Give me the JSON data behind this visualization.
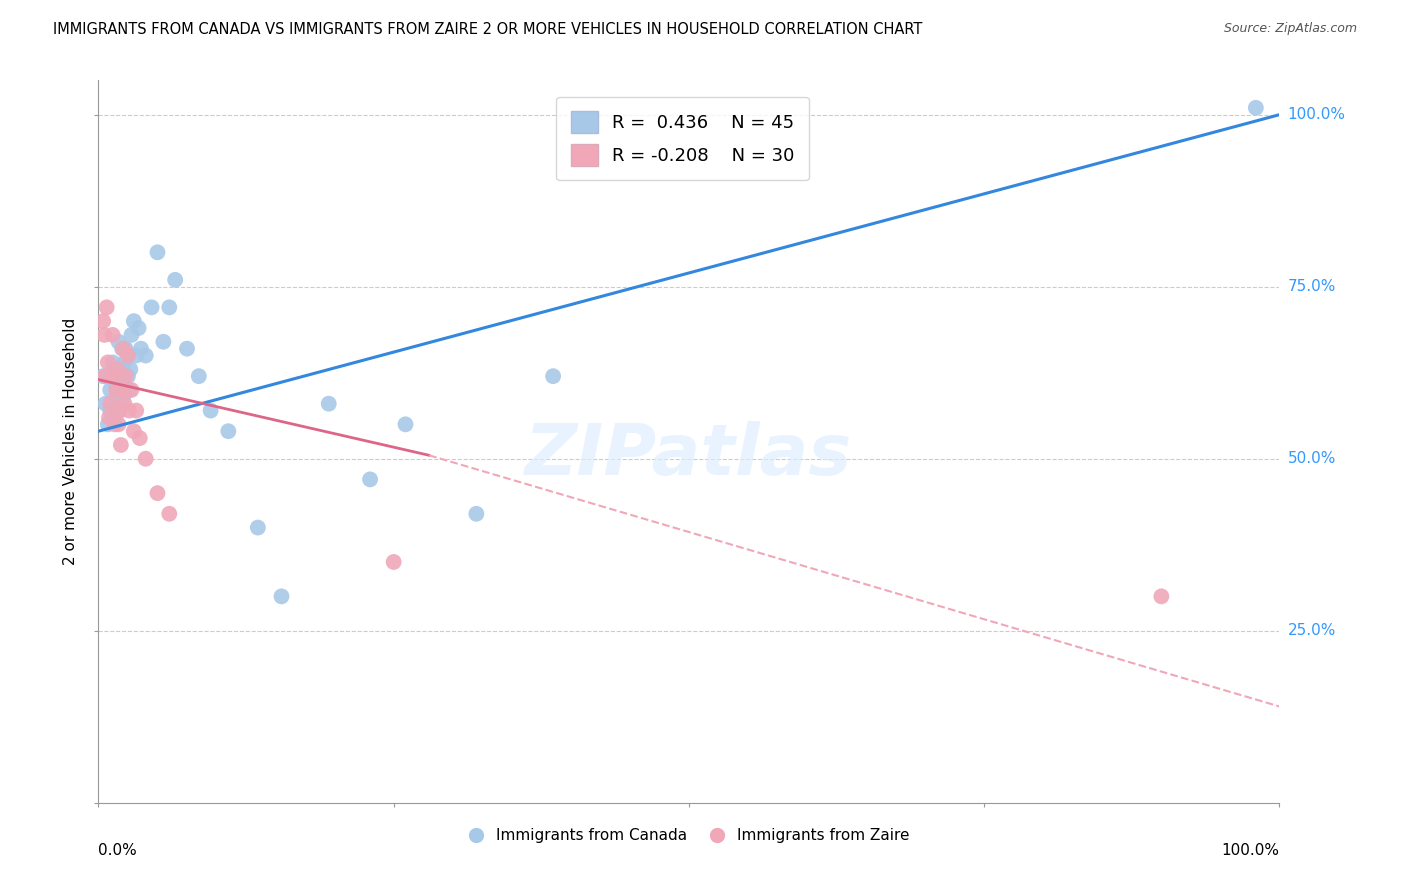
{
  "title": "IMMIGRANTS FROM CANADA VS IMMIGRANTS FROM ZAIRE 2 OR MORE VEHICLES IN HOUSEHOLD CORRELATION CHART",
  "source": "Source: ZipAtlas.com",
  "ylabel": "2 or more Vehicles in Household",
  "legend_canada_R": "0.436",
  "legend_canada_N": "45",
  "legend_zaire_R": "-0.208",
  "legend_zaire_N": "30",
  "canada_color": "#a8c8e8",
  "zaire_color": "#f0a8b8",
  "canada_line_color": "#3388dd",
  "zaire_line_solid_color": "#dd6688",
  "zaire_line_dash_color": "#f0a8b8",
  "background_color": "#ffffff",
  "grid_color": "#cccccc",
  "watermark_text": "ZIPatlas",
  "xlim": [
    0.0,
    1.0
  ],
  "ylim": [
    0.0,
    1.05
  ],
  "canada_line_x0": 0.0,
  "canada_line_y0": 0.54,
  "canada_line_x1": 1.0,
  "canada_line_y1": 1.0,
  "zaire_line_solid_x0": 0.0,
  "zaire_line_solid_y0": 0.615,
  "zaire_line_solid_x1": 0.28,
  "zaire_line_solid_y1": 0.505,
  "zaire_line_dash_x0": 0.28,
  "zaire_line_dash_y0": 0.505,
  "zaire_line_dash_x1": 1.0,
  "zaire_line_dash_y1": 0.14,
  "canada_points_x": [
    0.004,
    0.006,
    0.008,
    0.01,
    0.01,
    0.012,
    0.013,
    0.014,
    0.015,
    0.016,
    0.017,
    0.018,
    0.019,
    0.02,
    0.02,
    0.021,
    0.022,
    0.023,
    0.025,
    0.025,
    0.026,
    0.027,
    0.028,
    0.03,
    0.032,
    0.034,
    0.036,
    0.04,
    0.045,
    0.05,
    0.055,
    0.06,
    0.065,
    0.075,
    0.085,
    0.095,
    0.11,
    0.135,
    0.155,
    0.195,
    0.23,
    0.26,
    0.32,
    0.385,
    0.98
  ],
  "canada_points_y": [
    0.62,
    0.58,
    0.55,
    0.57,
    0.6,
    0.64,
    0.56,
    0.61,
    0.59,
    0.63,
    0.67,
    0.57,
    0.61,
    0.63,
    0.66,
    0.59,
    0.64,
    0.66,
    0.62,
    0.65,
    0.6,
    0.63,
    0.68,
    0.7,
    0.65,
    0.69,
    0.66,
    0.65,
    0.72,
    0.8,
    0.67,
    0.72,
    0.76,
    0.66,
    0.62,
    0.57,
    0.54,
    0.4,
    0.3,
    0.58,
    0.47,
    0.55,
    0.42,
    0.62,
    1.01
  ],
  "zaire_points_x": [
    0.004,
    0.005,
    0.006,
    0.007,
    0.008,
    0.009,
    0.01,
    0.012,
    0.013,
    0.014,
    0.015,
    0.016,
    0.017,
    0.018,
    0.019,
    0.02,
    0.021,
    0.022,
    0.023,
    0.025,
    0.026,
    0.028,
    0.03,
    0.032,
    0.035,
    0.04,
    0.05,
    0.06,
    0.25,
    0.9
  ],
  "zaire_points_y": [
    0.7,
    0.68,
    0.62,
    0.72,
    0.64,
    0.56,
    0.58,
    0.68,
    0.62,
    0.55,
    0.6,
    0.63,
    0.55,
    0.57,
    0.52,
    0.6,
    0.66,
    0.58,
    0.62,
    0.65,
    0.57,
    0.6,
    0.54,
    0.57,
    0.53,
    0.5,
    0.45,
    0.42,
    0.35,
    0.3
  ]
}
